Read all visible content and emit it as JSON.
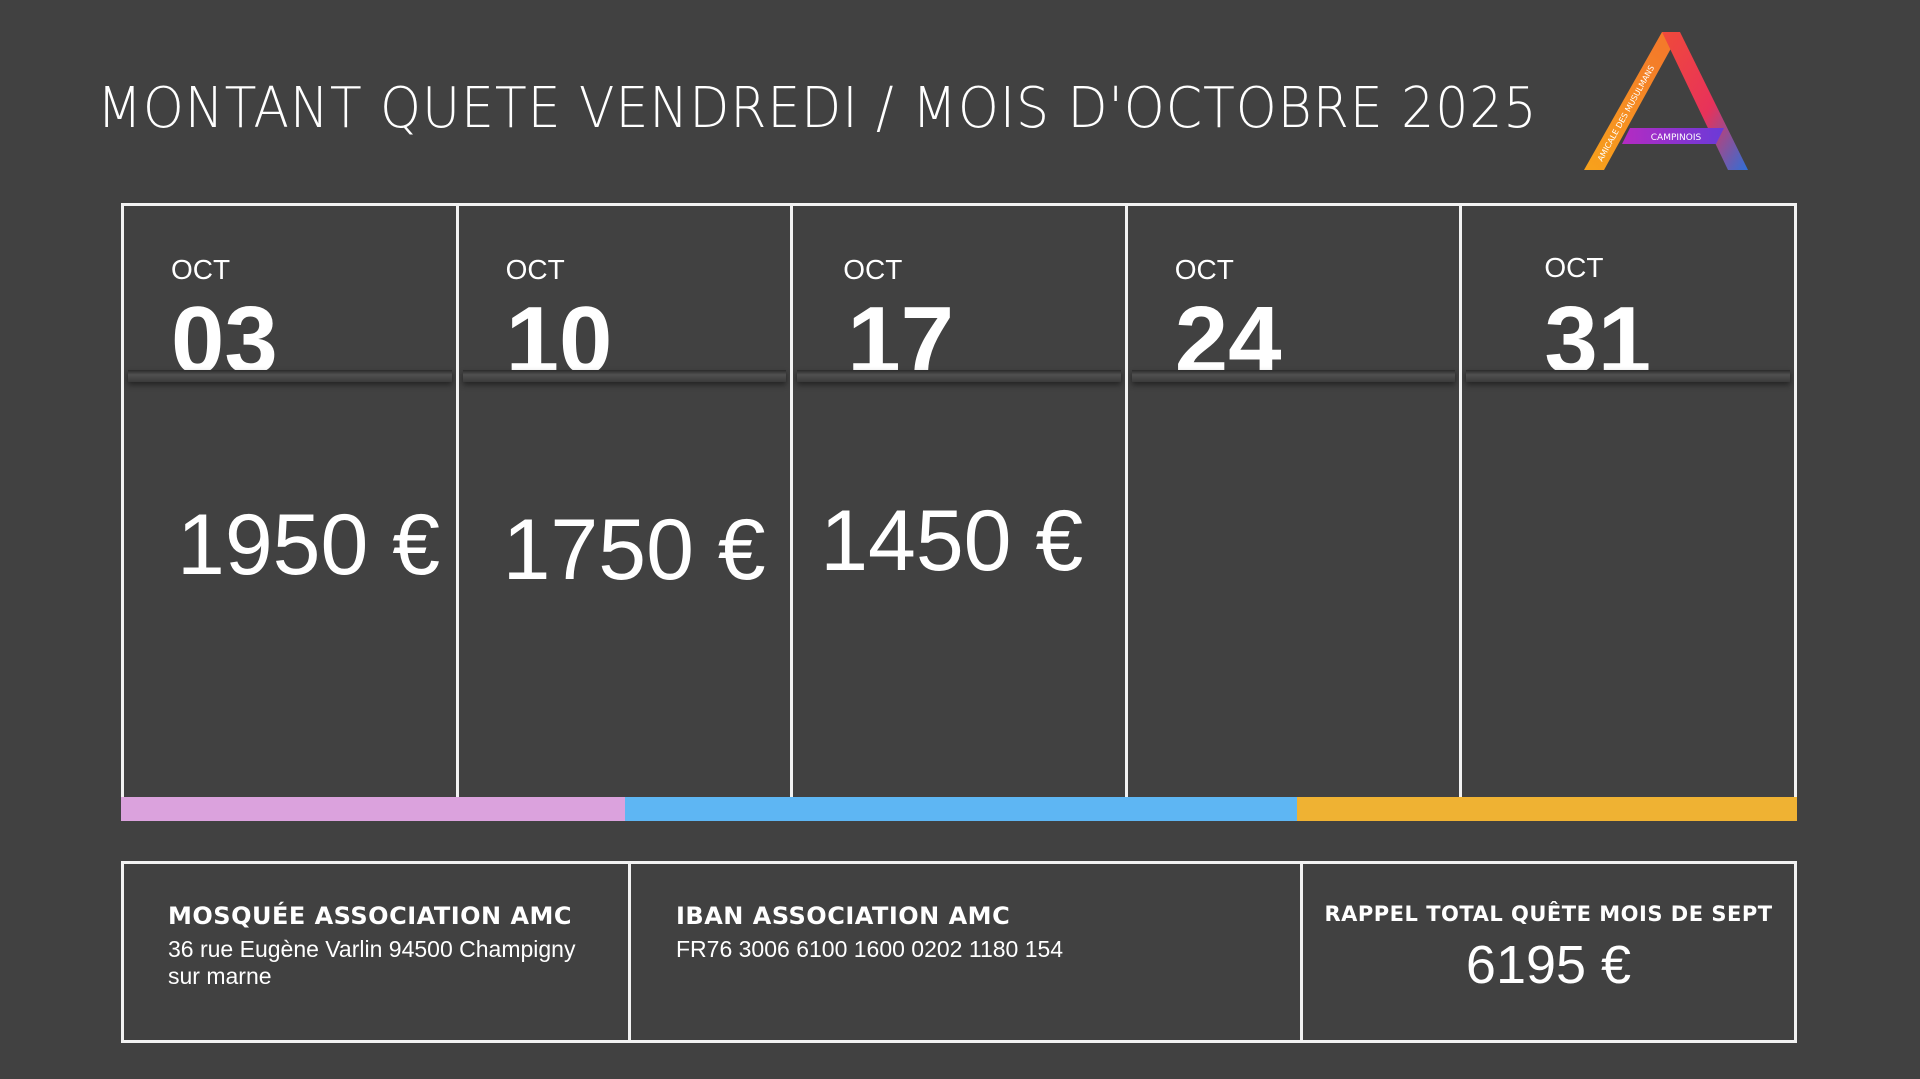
{
  "title": "MONTANT QUETE VENDREDI / MOIS D'OCTOBRE 2025",
  "logo": {
    "text_arc": "AMICALE DES MUSULMANS",
    "text_band": "CAMPINOIS"
  },
  "days": [
    {
      "month": "OCT",
      "day": "03",
      "amount": "1950 €"
    },
    {
      "month": "OCT",
      "day": "10",
      "amount": "1750 €"
    },
    {
      "month": "OCT",
      "day": "17",
      "amount": "1450 €"
    },
    {
      "month": "OCT",
      "day": "24",
      "amount": ""
    },
    {
      "month": "OCT",
      "day": "31",
      "amount": ""
    }
  ],
  "bar_colors": [
    "#dba2dd",
    "#5eb6f3",
    "#efb233"
  ],
  "mosque": {
    "heading": "MOSQUÉE ASSOCIATION AMC",
    "address": "36 rue Eugène Varlin 94500 Champigny sur marne"
  },
  "iban": {
    "heading": "IBAN ASSOCIATION AMC",
    "value": "FR76 3006 6100 1600 0202 1180 154"
  },
  "total": {
    "heading": "RAPPEL TOTAL QUÊTE MOIS DE SEPT",
    "value": "6195 €"
  }
}
